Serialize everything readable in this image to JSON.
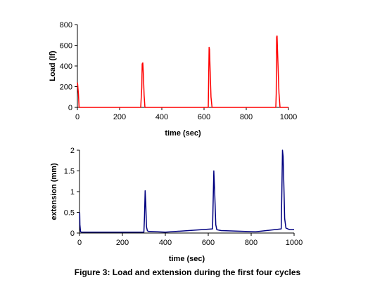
{
  "figure_caption": "Figure 3: Load and extension during the first four cycles",
  "chart_data": [
    {
      "type": "line",
      "xlabel": "time (sec)",
      "ylabel": "Load (lf)",
      "xlim": [
        0,
        1000
      ],
      "ylim": [
        0,
        800
      ],
      "xticks": [
        0,
        200,
        400,
        600,
        800,
        1000
      ],
      "yticks": [
        0,
        200,
        400,
        600,
        800
      ],
      "grid": false,
      "series": [
        {
          "color": "#ff0000",
          "x": [
            0,
            1,
            3,
            5,
            8,
            300,
            305,
            307,
            310,
            313,
            316,
            320,
            620,
            622,
            624,
            626,
            629,
            633,
            638,
            940,
            942,
            944,
            946,
            948,
            951,
            955,
            960,
            1000
          ],
          "y": [
            240,
            230,
            180,
            130,
            0,
            0,
            190,
            420,
            430,
            300,
            120,
            0,
            0,
            280,
            580,
            560,
            350,
            100,
            0,
            0,
            130,
            680,
            690,
            560,
            380,
            140,
            0,
            0
          ]
        }
      ]
    },
    {
      "type": "line",
      "xlabel": "time (sec)",
      "ylabel": "extension (mm)",
      "xlim": [
        0,
        1000
      ],
      "ylim": [
        0,
        2
      ],
      "xticks": [
        0,
        200,
        400,
        600,
        800,
        1000
      ],
      "yticks": [
        0,
        0.5,
        1,
        1.5,
        2
      ],
      "yticklabels": [
        "0",
        "0.5",
        "1",
        "1.5",
        "2"
      ],
      "grid": false,
      "series": [
        {
          "color": "#000080",
          "x": [
            0,
            1,
            2,
            5,
            10,
            300,
            303,
            306,
            309,
            312,
            316,
            320,
            400,
            620,
            623,
            626,
            630,
            635,
            640,
            660,
            820,
            940,
            943,
            946,
            949,
            952,
            956,
            962,
            980,
            1000
          ],
          "y": [
            0.5,
            0.48,
            0.2,
            0.03,
            0.02,
            0.02,
            0.4,
            1.02,
            0.7,
            0.15,
            0.06,
            0.04,
            0.02,
            0.1,
            0.8,
            1.5,
            1.0,
            0.2,
            0.08,
            0.06,
            0.03,
            0.1,
            1.0,
            2.0,
            1.85,
            1.2,
            0.35,
            0.12,
            0.08,
            0.08
          ]
        }
      ]
    }
  ]
}
